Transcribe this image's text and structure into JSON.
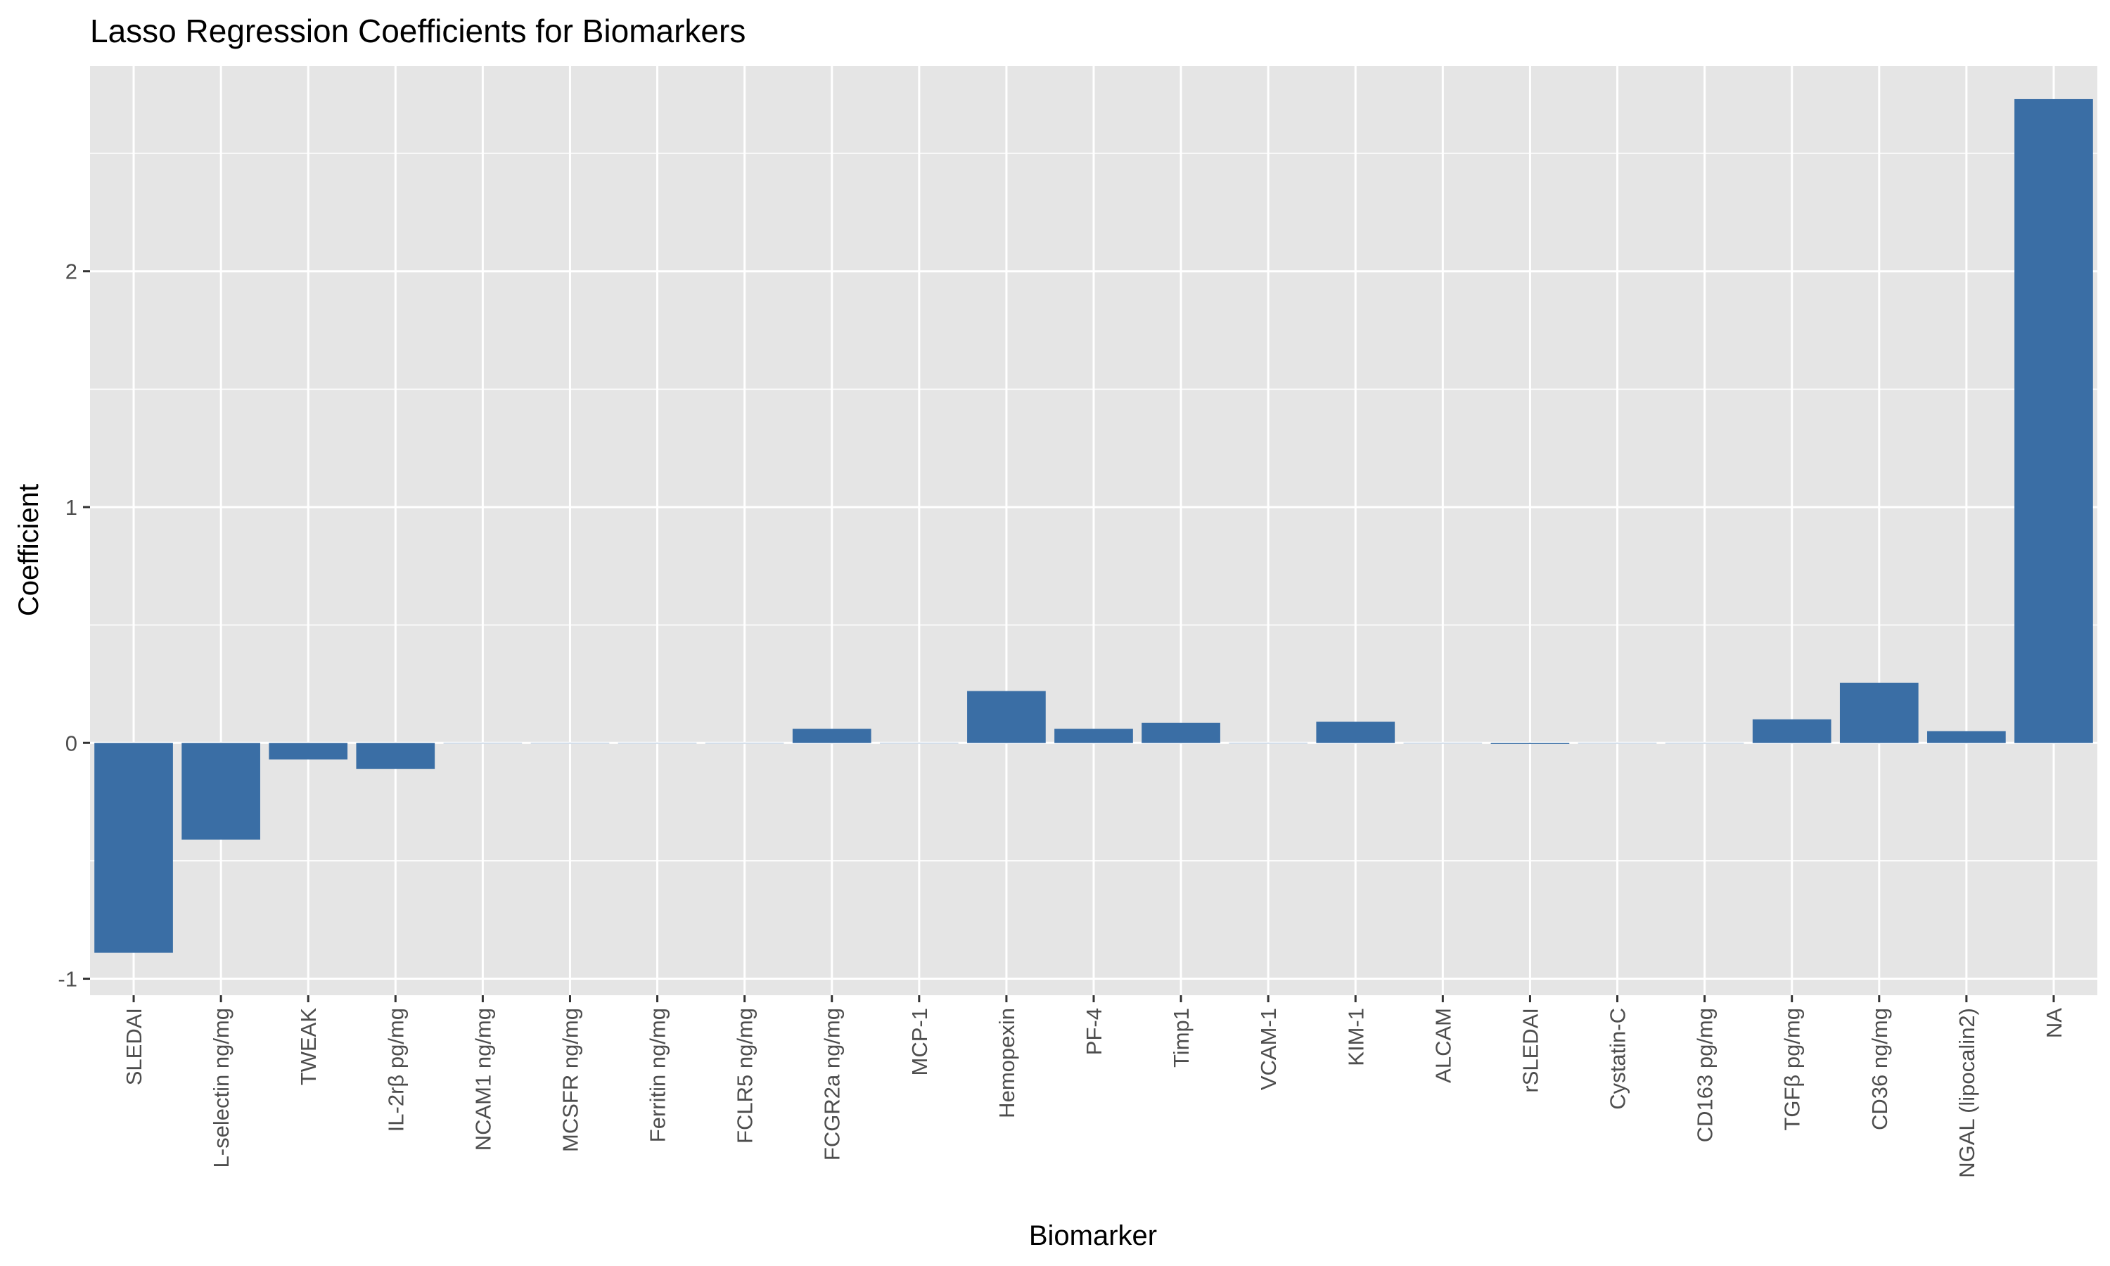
{
  "chart_data": {
    "type": "bar",
    "title": "Lasso Regression Coefficients for Biomarkers",
    "xlabel": "Biomarker",
    "ylabel": "Coefficient",
    "categories": [
      "SLEDAI",
      "L-selectin ng/mg",
      "TWEAK",
      "IL-2rβ pg/mg",
      "NCAM1 ng/mg",
      "MCSFR ng/mg",
      "Ferritin ng/mg",
      "FCLR5 ng/mg",
      "FCGR2a ng/mg",
      "MCP-1",
      "Hemopexin",
      "PF-4",
      "Timp1",
      "VCAM-1",
      "KIM-1",
      "ALCAM",
      "rSLEDAI",
      "Cystatin-C",
      "CD163 pg/mg",
      "TGFβ pg/mg",
      "CD36 ng/mg",
      "NGAL (lipocalin2)",
      "NA"
    ],
    "values": [
      -0.89,
      -0.41,
      -0.07,
      -0.11,
      0,
      0,
      0,
      0,
      0.06,
      0,
      0.22,
      0.06,
      0.085,
      0,
      0.09,
      0,
      -0.005,
      0,
      0,
      0.1,
      0.255,
      0.05,
      2.73
    ],
    "ylim": [
      -1.07,
      2.87
    ],
    "yticks": [
      -1,
      0,
      1,
      2
    ],
    "ytick_labels": [
      "-1",
      "0",
      "1",
      "2"
    ],
    "bar_color": "#3a6ea5",
    "panel_background": "#e5e5e5",
    "grid_color": "#ffffff",
    "grid": true,
    "legend": "none"
  }
}
